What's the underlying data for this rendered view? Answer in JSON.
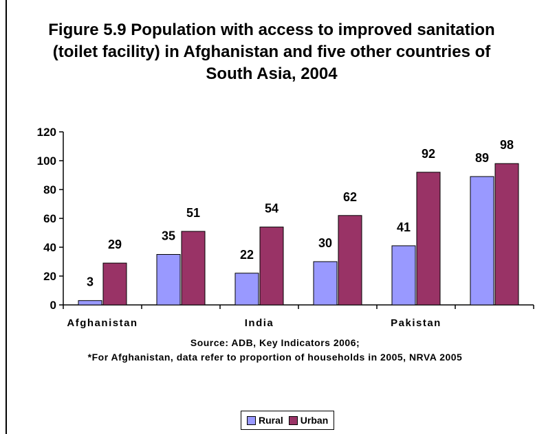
{
  "title": "Figure 5.9 Population with access to improved sanitation (toilet facility) in Afghanistan and five other countries of South Asia, 2004",
  "source_lines": [
    "Source: ADB, Key Indicators 2006;",
    "*For Afghanistan, data refer to proportion of households in 2005, NRVA 2005"
  ],
  "colors": {
    "rural": "#9999FF",
    "urban": "#993366",
    "axis": "#000000"
  },
  "chart_data": {
    "type": "bar",
    "title": "Figure 5.9 Population with access to improved sanitation (toilet facility) in Afghanistan and five other countries of South Asia, 2004",
    "categories": [
      "Afghanistan",
      "",
      "India",
      "",
      "Pakistan",
      ""
    ],
    "series": [
      {
        "name": "Rural",
        "values": [
          3,
          35,
          22,
          30,
          41,
          89
        ]
      },
      {
        "name": "Urban",
        "values": [
          29,
          51,
          54,
          62,
          92,
          98
        ]
      }
    ],
    "ylim": [
      0,
      120
    ],
    "yticks": [
      0,
      20,
      40,
      60,
      80,
      100,
      120
    ],
    "xlabel": "",
    "ylabel": "",
    "grid": false,
    "legend_position": "bottom"
  }
}
